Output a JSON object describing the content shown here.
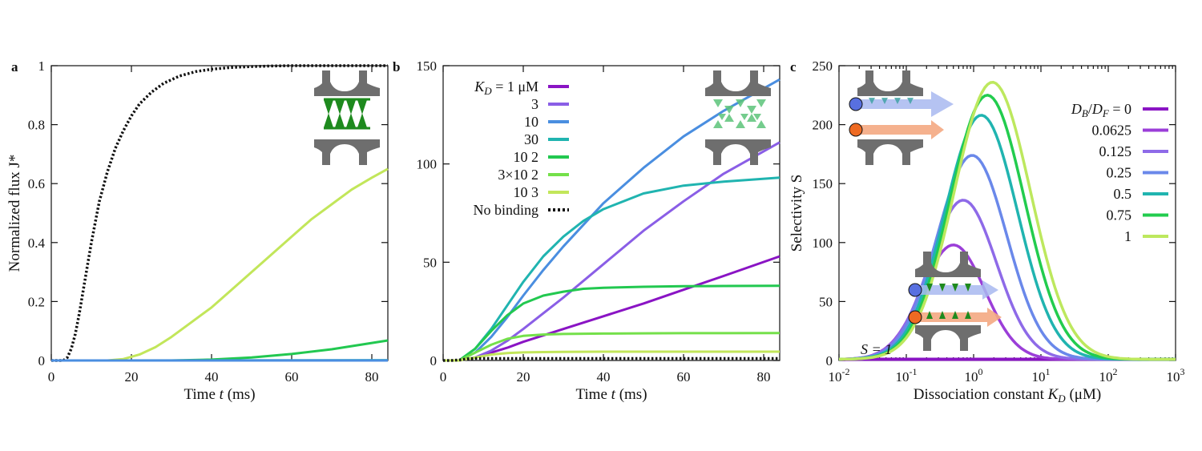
{
  "colors": {
    "c1": "#8a14c4",
    "c3": "#8a5ee6",
    "c10": "#4a8ee0",
    "c30": "#20b4b0",
    "c100": "#22c850",
    "c300": "#74e04a",
    "c1000": "#c2e65a",
    "nobind": "#111111",
    "r0": "#8a14c4",
    "r00625": "#9b3ed8",
    "r0125": "#8e6ae8",
    "r025": "#6a88ea",
    "r05": "#20b4b0",
    "r075": "#22cc4e",
    "r1": "#bde85e",
    "inset_gray": "#6e6e6e",
    "inset_green": "#1e8a1e",
    "arrow_blue": "#a8b8f0",
    "arrow_orange": "#f4a882",
    "ball_blue": "#5870e0",
    "ball_orange": "#ee6a22"
  },
  "chart_data": [
    {
      "type": "line",
      "panel_label": "a",
      "xlabel": "Time",
      "xlabel_var": "t",
      "xlabel_unit": "(ms)",
      "ylabel": "Normalized flux J*",
      "xlim": [
        0,
        84
      ],
      "ylim": [
        0,
        1
      ],
      "xticks": [
        "0",
        "20",
        "40",
        "60",
        "80"
      ],
      "yticks": [
        "0",
        "0.2",
        "0.4",
        "0.6",
        "0.8",
        "1"
      ],
      "series": [
        {
          "color_key": "nobind",
          "dashed": true,
          "x": [
            0,
            3,
            4,
            5,
            6,
            7,
            8,
            9,
            10,
            11,
            12,
            14,
            16,
            18,
            20,
            22,
            25,
            28,
            32,
            36,
            40,
            45,
            50,
            55,
            60,
            70,
            84
          ],
          "y": [
            0,
            0,
            0.01,
            0.04,
            0.09,
            0.16,
            0.24,
            0.32,
            0.4,
            0.47,
            0.54,
            0.64,
            0.72,
            0.78,
            0.83,
            0.87,
            0.91,
            0.94,
            0.965,
            0.98,
            0.988,
            0.994,
            0.997,
            0.999,
            1,
            1,
            1
          ]
        },
        {
          "color_key": "c1000",
          "x": [
            0,
            14,
            18,
            22,
            26,
            30,
            35,
            40,
            45,
            50,
            55,
            60,
            65,
            70,
            75,
            80,
            84
          ],
          "y": [
            0,
            0,
            0.005,
            0.02,
            0.045,
            0.08,
            0.13,
            0.18,
            0.24,
            0.3,
            0.36,
            0.42,
            0.48,
            0.53,
            0.58,
            0.62,
            0.65
          ]
        },
        {
          "color_key": "c100",
          "x": [
            0,
            30,
            40,
            50,
            60,
            70,
            84
          ],
          "y": [
            0,
            0,
            0.003,
            0.01,
            0.022,
            0.038,
            0.068
          ]
        },
        {
          "color_key": "c30",
          "x": [
            0,
            84
          ],
          "y": [
            0,
            0.001
          ]
        },
        {
          "color_key": "c10",
          "x": [
            0,
            84
          ],
          "y": [
            0,
            0
          ]
        }
      ]
    },
    {
      "type": "line",
      "panel_label": "b",
      "xlabel": "Time",
      "xlabel_var": "t",
      "xlabel_unit": "(ms)",
      "xlim": [
        0,
        84
      ],
      "ylim": [
        0,
        150
      ],
      "xticks": [
        "0",
        "20",
        "40",
        "60",
        "80"
      ],
      "yticks": [
        "0",
        "50",
        "100",
        "150"
      ],
      "series": [
        {
          "name": "= 1 μM",
          "name_prefix": "K",
          "name_sub": "D",
          "color_key": "c1",
          "x": [
            0,
            4,
            8,
            12,
            16,
            20,
            30,
            40,
            50,
            60,
            70,
            84
          ],
          "y": [
            0,
            0,
            1.5,
            4,
            6.5,
            9.5,
            16,
            22.5,
            29,
            36,
            43,
            53
          ]
        },
        {
          "name": "3",
          "color_key": "c3",
          "x": [
            0,
            4,
            8,
            12,
            16,
            20,
            25,
            30,
            40,
            50,
            60,
            70,
            84
          ],
          "y": [
            0,
            0,
            1.5,
            5,
            10,
            16,
            24,
            32,
            49,
            66,
            81,
            95,
            111
          ]
        },
        {
          "name": "10",
          "color_key": "c10",
          "x": [
            0,
            4,
            8,
            12,
            16,
            20,
            25,
            30,
            35,
            40,
            50,
            60,
            70,
            84
          ],
          "y": [
            0,
            0,
            4,
            12,
            22,
            33,
            46,
            58,
            69,
            80,
            98,
            114,
            127,
            143
          ]
        },
        {
          "name": "30",
          "color_key": "c30",
          "x": [
            0,
            4,
            8,
            12,
            16,
            20,
            25,
            30,
            35,
            40,
            50,
            60,
            70,
            84
          ],
          "y": [
            0,
            0,
            6,
            16,
            28,
            40,
            53,
            63,
            71,
            77,
            85,
            89,
            91,
            93
          ]
        },
        {
          "name": "10 2",
          "color_key": "c100",
          "x": [
            0,
            4,
            8,
            12,
            16,
            20,
            25,
            30,
            35,
            40,
            50,
            60,
            70,
            84
          ],
          "y": [
            0,
            0,
            6,
            15,
            23,
            29,
            33,
            35,
            36.5,
            37,
            37.5,
            37.8,
            37.9,
            38
          ]
        },
        {
          "name": "3×10 2",
          "color_key": "c300",
          "x": [
            0,
            4,
            8,
            12,
            16,
            20,
            25,
            30,
            40,
            50,
            60,
            70,
            84
          ],
          "y": [
            0,
            0,
            4,
            8,
            11,
            12.5,
            13.2,
            13.5,
            13.7,
            13.8,
            13.9,
            13.9,
            14
          ]
        },
        {
          "name": "10 3",
          "color_key": "c1000",
          "x": [
            0,
            4,
            8,
            12,
            16,
            20,
            25,
            30,
            40,
            50,
            60,
            70,
            84
          ],
          "y": [
            0,
            0,
            1.5,
            3,
            3.8,
            4.1,
            4.3,
            4.4,
            4.5,
            4.5,
            4.5,
            4.5,
            4.5
          ]
        },
        {
          "name": "No binding",
          "color_key": "nobind",
          "dashed": true,
          "x": [
            0,
            2,
            4,
            6,
            8,
            10,
            20,
            40,
            84
          ],
          "y": [
            0,
            0,
            0.3,
            0.8,
            1,
            1,
            1,
            1,
            1
          ]
        }
      ]
    },
    {
      "type": "line",
      "panel_label": "c",
      "xlabel": "Dissociation constant",
      "xlabel_var": "K",
      "xlabel_sub": "D",
      "xlabel_unit": "(μM)",
      "ylabel": "Selectivity S",
      "xscale": "log",
      "xlim": [
        0.01,
        1000
      ],
      "ylim": [
        0,
        250
      ],
      "xticks": [
        {
          "base": "10",
          "exp": "-2"
        },
        {
          "base": "10",
          "exp": "-1"
        },
        {
          "base": "10",
          "exp": "0"
        },
        {
          "base": "10",
          "exp": "1"
        },
        {
          "base": "10",
          "exp": "2"
        },
        {
          "base": "10",
          "exp": "3"
        }
      ],
      "yticks": [
        "0",
        "50",
        "100",
        "150",
        "200",
        "250"
      ],
      "legend_title": "D_B/D_F",
      "annotation": "S = 1",
      "peaks": [
        {
          "name": "= 0",
          "color_key": "r0",
          "peak": 1,
          "x0": 0.5,
          "w": 0.01
        },
        {
          "name": "0.0625",
          "color_key": "r00625",
          "peak": 98,
          "x0": 0.5,
          "w": 0.66
        },
        {
          "name": "0.125",
          "color_key": "r0125",
          "peak": 136,
          "x0": 0.7,
          "w": 0.7
        },
        {
          "name": "0.25",
          "color_key": "r025",
          "peak": 174,
          "x0": 0.95,
          "w": 0.73
        },
        {
          "name": "0.5",
          "color_key": "r05",
          "peak": 208,
          "x0": 1.3,
          "w": 0.76
        },
        {
          "name": "0.75",
          "color_key": "r075",
          "peak": 225,
          "x0": 1.6,
          "w": 0.78
        },
        {
          "name": "1",
          "color_key": "r1",
          "peak": 236,
          "x0": 1.9,
          "w": 0.8
        }
      ]
    }
  ]
}
